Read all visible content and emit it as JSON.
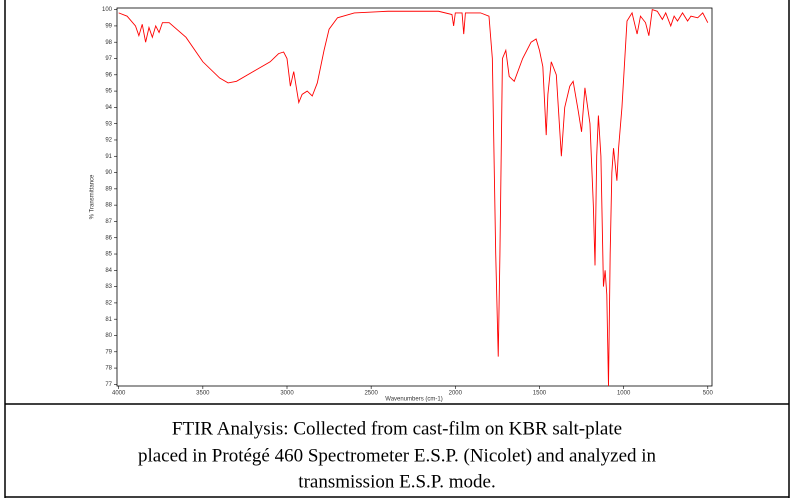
{
  "chart_data": {
    "type": "line",
    "xlabel": "Wavenumbers (cm-1)",
    "ylabel": "% Transmittance",
    "x": [
      4000,
      3950,
      3900,
      3880,
      3860,
      3840,
      3820,
      3800,
      3780,
      3760,
      3740,
      3700,
      3600,
      3500,
      3400,
      3350,
      3300,
      3200,
      3100,
      3050,
      3020,
      3000,
      2980,
      2960,
      2930,
      2910,
      2880,
      2850,
      2820,
      2780,
      2750,
      2700,
      2600,
      2400,
      2100,
      2020,
      2010,
      2000,
      1960,
      1950,
      1940,
      1850,
      1800,
      1780,
      1760,
      1745,
      1735,
      1720,
      1700,
      1680,
      1650,
      1600,
      1550,
      1520,
      1500,
      1480,
      1460,
      1450,
      1430,
      1400,
      1385,
      1370,
      1350,
      1320,
      1300,
      1270,
      1250,
      1230,
      1200,
      1180,
      1170,
      1160,
      1150,
      1135,
      1120,
      1110,
      1100,
      1090,
      1080,
      1070,
      1060,
      1040,
      1030,
      1010,
      980,
      950,
      920,
      900,
      870,
      850,
      830,
      800,
      770,
      750,
      720,
      700,
      680,
      650,
      620,
      600,
      560,
      530,
      500
    ],
    "values": [
      99.8,
      99.6,
      99.0,
      98.4,
      99.1,
      98.0,
      98.9,
      98.3,
      99.0,
      98.6,
      99.2,
      99.2,
      98.3,
      96.8,
      95.8,
      95.5,
      95.6,
      96.2,
      96.8,
      97.3,
      97.4,
      97.0,
      95.3,
      96.2,
      94.3,
      94.8,
      95.0,
      94.7,
      95.5,
      97.5,
      98.8,
      99.5,
      99.8,
      99.9,
      99.9,
      99.7,
      99.0,
      99.8,
      99.8,
      98.5,
      99.8,
      99.8,
      99.6,
      97.0,
      85,
      78.7,
      85,
      97,
      97.5,
      95.9,
      95.6,
      97,
      98,
      98.2,
      97.5,
      96.5,
      92.3,
      94.8,
      96.8,
      96.0,
      93.5,
      91.0,
      94,
      95.3,
      95.6,
      93.8,
      92.5,
      95.2,
      93,
      88,
      84.3,
      91,
      93.5,
      91,
      83,
      84,
      82.5,
      76.9,
      85,
      90,
      91.5,
      89.5,
      91.5,
      94,
      99.3,
      99.8,
      98.5,
      99.6,
      99.2,
      98.4,
      100,
      99.9,
      99.4,
      99.8,
      99.0,
      99.6,
      99.3,
      99.8,
      99.3,
      99.6,
      99.5,
      99.8,
      99.2
    ],
    "color": "#ff0000",
    "xlim": [
      4010,
      475
    ],
    "ylim": [
      76.9,
      100.1
    ],
    "xticks": [
      4000,
      3500,
      3000,
      2500,
      2000,
      1500,
      1000,
      500
    ],
    "yticks": [
      77,
      78,
      79,
      80,
      81,
      82,
      83,
      84,
      85,
      86,
      87,
      88,
      89,
      90,
      91,
      92,
      93,
      94,
      95,
      96,
      97,
      98,
      99,
      100
    ]
  },
  "caption": [
    "FTIR Analysis: Collected from cast-film on KBR salt-plate",
    "placed in Protégé 460 Spectrometer E.S.P. (Nicolet) and analyzed in",
    "transmission E.S.P. mode."
  ]
}
